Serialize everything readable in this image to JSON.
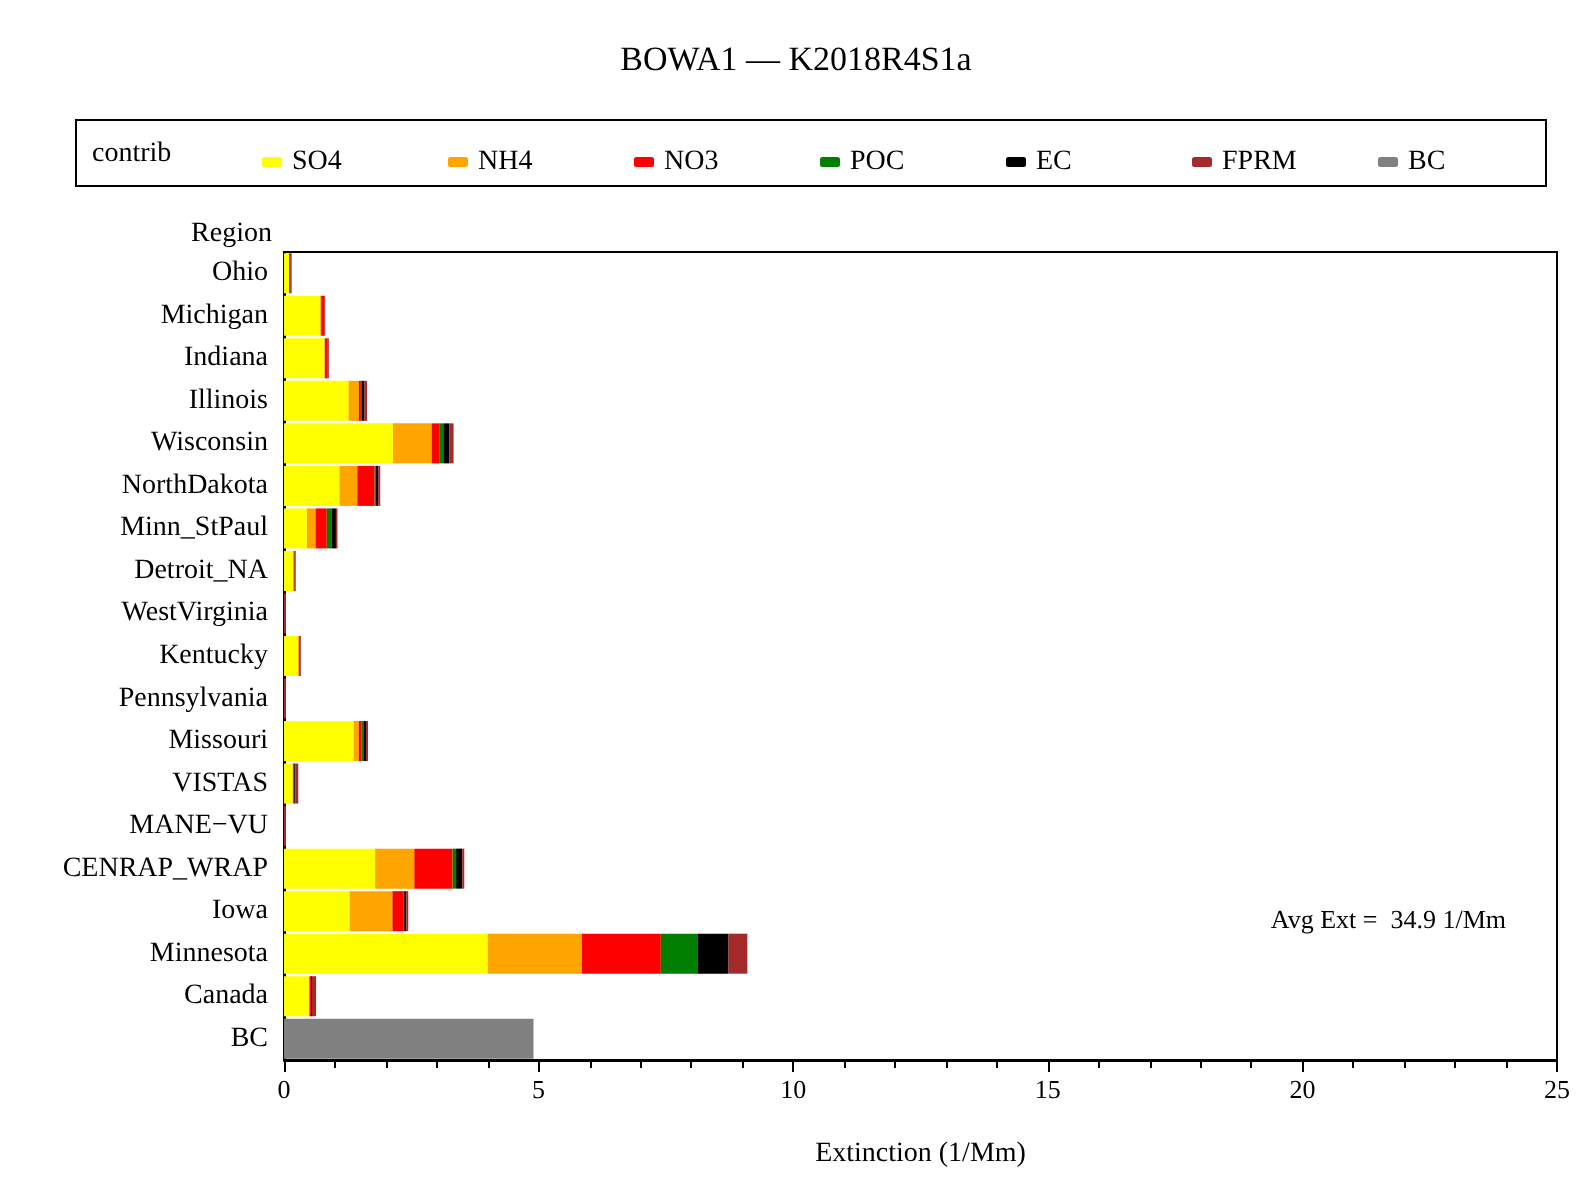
{
  "chart_data": {
    "type": "bar",
    "orientation": "horizontal",
    "stacked": true,
    "title": "BOWA1 — K2018R4S1a",
    "xlabel": "Extinction (1/Mm)",
    "ylabel": "Region",
    "legend_title": "contrib",
    "legend": "top",
    "grid": false,
    "categories": [
      "Ohio",
      "Michigan",
      "Indiana",
      "Illinois",
      "Wisconsin",
      "NorthDakota",
      "Minn_StPaul",
      "Detroit_NA",
      "WestVirginia",
      "Kentucky",
      "Pennsylvania",
      "Missouri",
      "VISTAS",
      "MANE−VU",
      "CENRAP_WRAP",
      "Iowa",
      "Minnesota",
      "Canada",
      "BC"
    ],
    "xlim": [
      0,
      25
    ],
    "xticks": [
      0,
      5,
      10,
      15,
      20,
      25
    ],
    "series": [
      {
        "name": "SO4",
        "color": "#ffff00",
        "values": [
          0.1,
          0.71,
          0.8,
          1.27,
          2.14,
          1.09,
          0.45,
          0.18,
          0,
          0.28,
          0,
          1.37,
          0.17,
          0,
          1.79,
          1.29,
          4.0,
          0.49,
          null
        ]
      },
      {
        "name": "NH4",
        "color": "#ffa500",
        "values": [
          0,
          0.02,
          0,
          0.2,
          0.76,
          0.35,
          0.17,
          0.01,
          0,
          0.01,
          0,
          0.1,
          0.01,
          0,
          0.77,
          0.84,
          1.85,
          0.01,
          null
        ]
      },
      {
        "name": "NO3",
        "color": "#ff0000",
        "values": [
          0.02,
          0.06,
          0.06,
          0.04,
          0.16,
          0.34,
          0.22,
          0.01,
          0,
          0.01,
          0,
          0.05,
          0.02,
          0,
          0.75,
          0.21,
          1.55,
          0.03,
          null
        ]
      },
      {
        "name": "POC",
        "color": "#008000",
        "values": [
          0,
          0,
          0,
          0.02,
          0.07,
          0.02,
          0.1,
          0,
          0,
          0,
          0,
          0.04,
          0,
          0,
          0.07,
          0.02,
          0.73,
          0,
          null
        ]
      },
      {
        "name": "EC",
        "color": "#000000",
        "values": [
          0,
          0,
          0,
          0.05,
          0.12,
          0.05,
          0.08,
          0,
          0,
          0.01,
          0,
          0.05,
          0.02,
          0,
          0.12,
          0.04,
          0.6,
          0.02,
          null
        ]
      },
      {
        "name": "FPRM",
        "color": "#a52a2a",
        "values": [
          0.03,
          0.02,
          0.02,
          0.05,
          0.08,
          0.04,
          0.03,
          0.03,
          0.04,
          0.02,
          0.04,
          0.04,
          0.06,
          0.04,
          0.04,
          0.04,
          0.37,
          0.08,
          null
        ]
      },
      {
        "name": "BC",
        "color": "#808080",
        "values": [
          null,
          null,
          null,
          null,
          null,
          null,
          null,
          null,
          null,
          null,
          null,
          null,
          null,
          null,
          null,
          null,
          null,
          null,
          4.9
        ]
      }
    ],
    "annotations": [
      "Avg Ext =  34.9 1/Mm"
    ]
  }
}
